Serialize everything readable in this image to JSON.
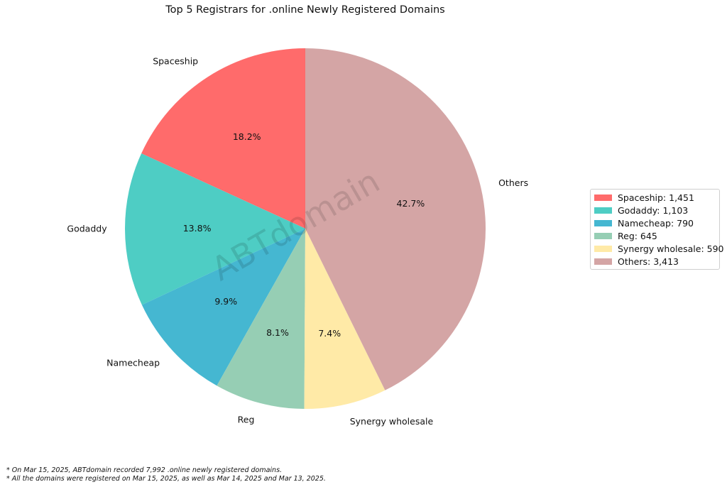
{
  "chart_data": {
    "type": "pie",
    "title": "Top 5 Registrars for .online Newly Registered Domains",
    "watermark": "ABTdomain",
    "slices": [
      {
        "label": "Spaceship",
        "value": 1451,
        "percent_label": "18.2%",
        "legend_label": "Spaceship: 1,451",
        "color": "#ff6b6b"
      },
      {
        "label": "Godaddy",
        "value": 1103,
        "percent_label": "13.8%",
        "legend_label": "Godaddy: 1,103",
        "color": "#4ecdc4"
      },
      {
        "label": "Namecheap",
        "value": 790,
        "percent_label": "9.9%",
        "legend_label": "Namecheap: 790",
        "color": "#45b7d1"
      },
      {
        "label": "Reg",
        "value": 645,
        "percent_label": "8.1%",
        "legend_label": "Reg: 645",
        "color": "#96ceb4"
      },
      {
        "label": "Synergy wholesale",
        "value": 590,
        "percent_label": "7.4%",
        "legend_label": "Synergy wholesale: 590",
        "color": "#ffeaa7"
      },
      {
        "label": "Others",
        "value": 3413,
        "percent_label": "42.7%",
        "legend_label": "Others: 3,413",
        "color": "#d4a5a5"
      }
    ],
    "start_angle_deg": 90,
    "direction": "counterclockwise",
    "legend_position": "right"
  },
  "footnotes": [
    "* On Mar 15, 2025, ABTdomain recorded 7,992 .online newly registered domains.",
    "* All the domains were registered on Mar 15, 2025, as well as Mar 14, 2025 and Mar 13, 2025."
  ]
}
